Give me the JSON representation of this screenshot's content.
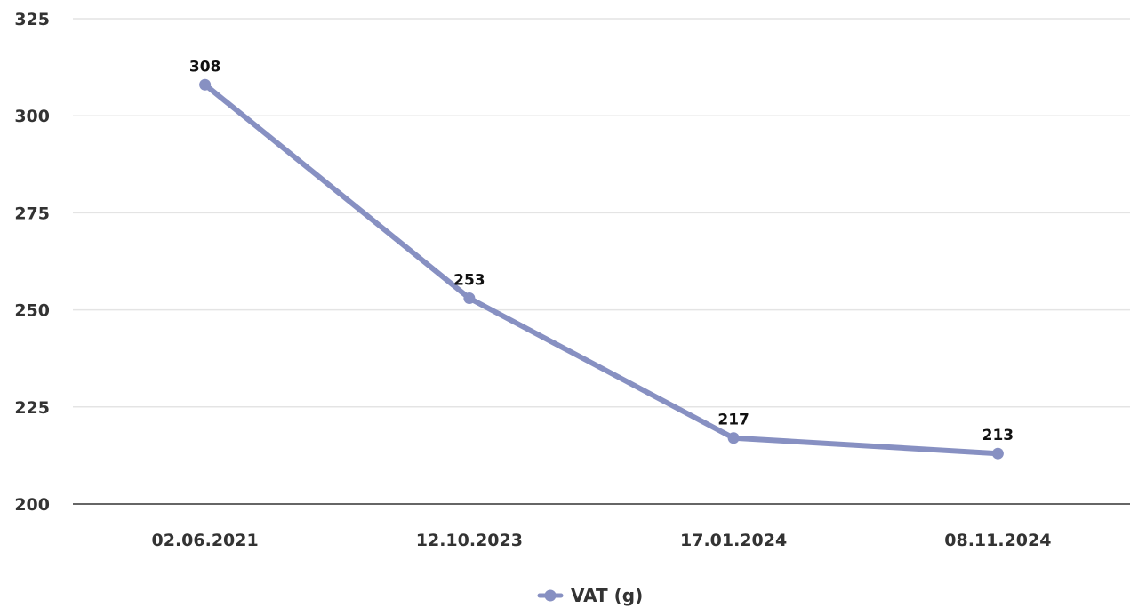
{
  "chart_data": {
    "type": "line",
    "categories": [
      "02.06.2021",
      "12.10.2023",
      "17.01.2024",
      "08.11.2024"
    ],
    "series": [
      {
        "name": "VAT (g)",
        "values": [
          308,
          253,
          217,
          213
        ],
        "color": "#8790c2"
      }
    ],
    "ylim": [
      200,
      325
    ],
    "yticks": [
      200,
      225,
      250,
      275,
      300,
      325
    ],
    "grid": true,
    "data_labels": true,
    "legend_position": "bottom-center"
  }
}
